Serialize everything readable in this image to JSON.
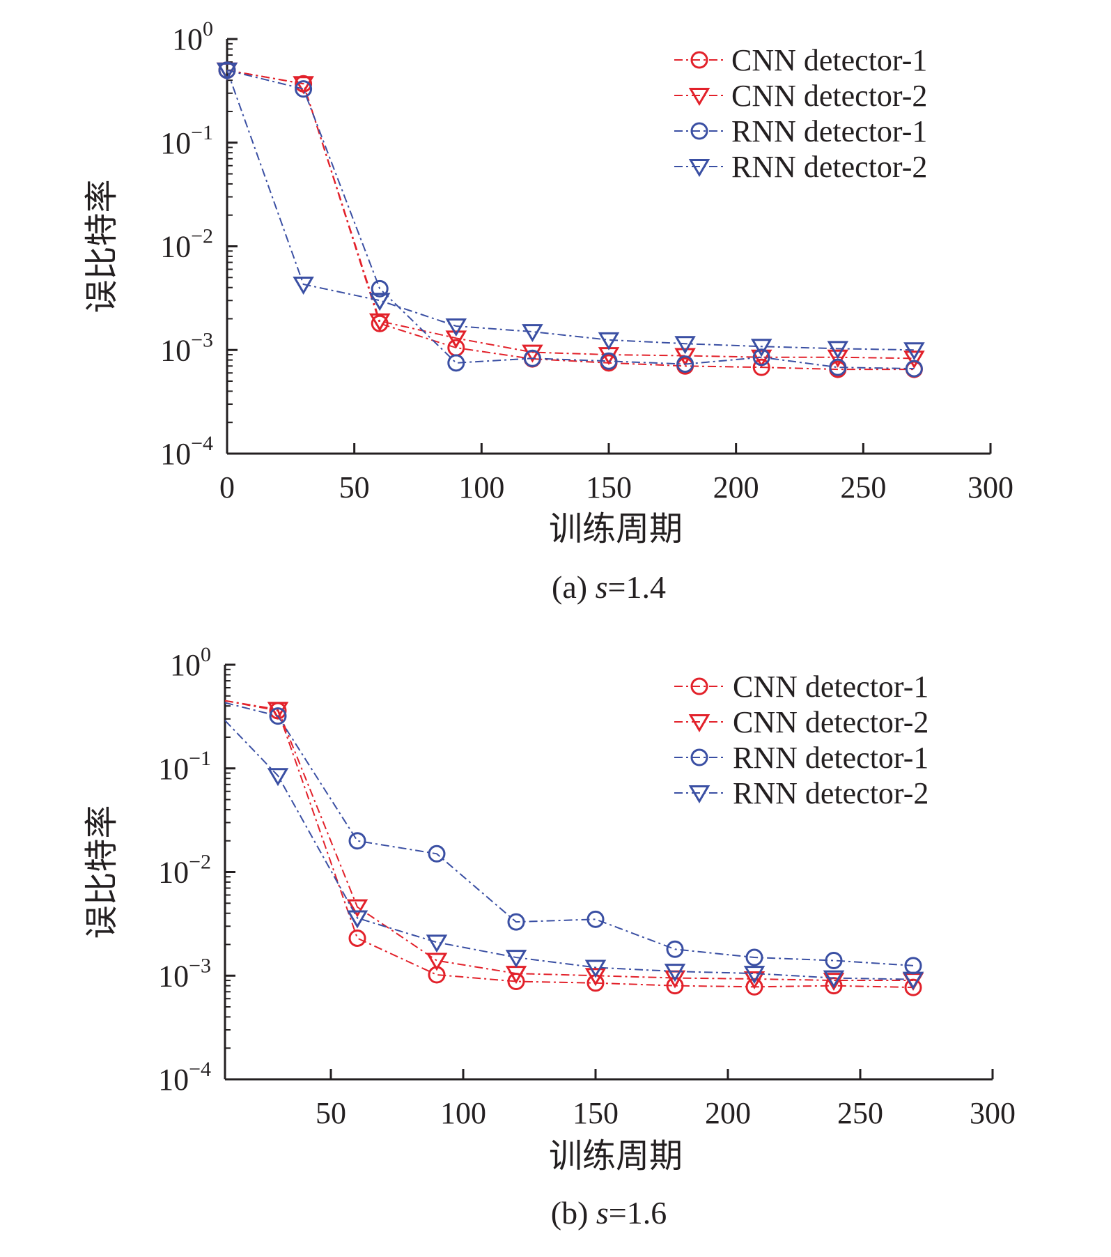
{
  "chart_data": [
    {
      "type": "line",
      "yscale": "log",
      "caption_prefix": "(a)",
      "caption_var": "s",
      "caption_rest": "=1.4",
      "xlabel": "训练周期",
      "ylabel": "误比特率",
      "xlim": [
        0,
        300
      ],
      "x_ticks": [
        "0",
        "50",
        "100",
        "150",
        "200",
        "250",
        "300"
      ],
      "ylim_exp": [
        -4,
        0
      ],
      "y_tick_exponents": [
        "0",
        "−1",
        "−2",
        "−3",
        "−4"
      ],
      "legend_position": "top-right",
      "x": [
        0,
        30,
        60,
        90,
        120,
        150,
        180,
        210,
        240,
        270
      ],
      "series": [
        {
          "name": "CNN detector-1",
          "color": "#e2212a",
          "marker": "circle",
          "values": [
            0.5,
            0.37,
            0.0018,
            0.00105,
            0.00082,
            0.00075,
            0.0007,
            0.00068,
            0.00065,
            0.00065
          ]
        },
        {
          "name": "CNN detector-2",
          "color": "#e2212a",
          "marker": "triangle-down",
          "values": [
            0.5,
            0.37,
            0.0019,
            0.0013,
            0.00095,
            0.0009,
            0.00088,
            0.00085,
            0.00085,
            0.00083
          ]
        },
        {
          "name": "RNN detector-1",
          "color": "#3a4fa3",
          "marker": "circle",
          "values": [
            0.5,
            0.33,
            0.0039,
            0.00075,
            0.00083,
            0.00078,
            0.00073,
            0.00085,
            0.00068,
            0.00066
          ]
        },
        {
          "name": "RNN detector-2",
          "color": "#3a4fa3",
          "marker": "triangle-down",
          "values": [
            0.5,
            0.0043,
            0.003,
            0.0017,
            0.0015,
            0.00125,
            0.00115,
            0.00108,
            0.00103,
            0.001
          ]
        }
      ]
    },
    {
      "type": "line",
      "yscale": "log",
      "caption_prefix": "(b)",
      "caption_var": "s",
      "caption_rest": "=1.6",
      "xlabel": "训练周期",
      "ylabel": "误比特率",
      "xlim": [
        10,
        300
      ],
      "x_ticks": [
        "50",
        "100",
        "150",
        "200",
        "250",
        "300"
      ],
      "ylim_exp": [
        -4,
        0
      ],
      "y_tick_exponents": [
        "0",
        "−1",
        "−2",
        "−3",
        "−4"
      ],
      "legend_position": "top-right",
      "x_line_start": 10,
      "x": [
        30,
        60,
        90,
        120,
        150,
        180,
        210,
        240,
        270
      ],
      "series": [
        {
          "name": "CNN detector-1",
          "color": "#e2212a",
          "marker": "circle",
          "start_value": 0.45,
          "values": [
            0.36,
            0.0023,
            0.00102,
            0.00088,
            0.00085,
            0.0008,
            0.00078,
            0.0008,
            0.00077
          ]
        },
        {
          "name": "CNN detector-2",
          "color": "#e2212a",
          "marker": "triangle-down",
          "start_value": 0.45,
          "values": [
            0.37,
            0.0046,
            0.0014,
            0.00105,
            0.001,
            0.00095,
            0.00093,
            0.0009,
            0.0009
          ]
        },
        {
          "name": "RNN detector-1",
          "color": "#3a4fa3",
          "marker": "circle",
          "start_value": 0.43,
          "values": [
            0.32,
            0.02,
            0.015,
            0.0033,
            0.0035,
            0.0018,
            0.0015,
            0.0014,
            0.00125
          ]
        },
        {
          "name": "RNN detector-2",
          "color": "#3a4fa3",
          "marker": "triangle-down",
          "start_value": 0.29,
          "values": [
            0.085,
            0.0036,
            0.0021,
            0.0015,
            0.0012,
            0.0011,
            0.00105,
            0.00095,
            0.00092
          ]
        }
      ]
    }
  ]
}
